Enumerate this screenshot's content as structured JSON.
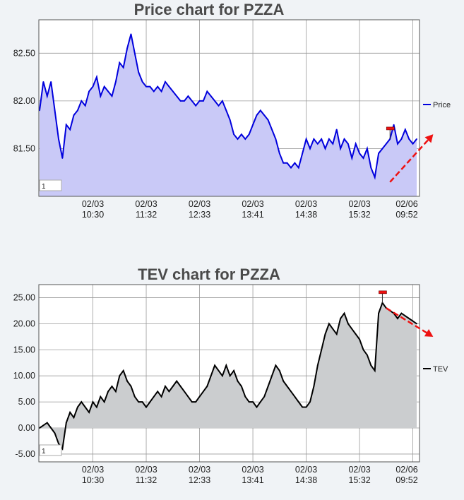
{
  "chart_data": [
    {
      "type": "area",
      "title": "Price chart for PZZA",
      "xlabel": "",
      "ylabel": "",
      "ylim": [
        81.0,
        82.85
      ],
      "y_ticks": [
        "82.50",
        "82.00",
        "81.50"
      ],
      "y_tick_values": [
        82.5,
        82.0,
        81.5
      ],
      "x_ticks": [
        [
          "02/03",
          "10:30"
        ],
        [
          "02/03",
          "11:32"
        ],
        [
          "02/03",
          "12:33"
        ],
        [
          "02/03",
          "13:41"
        ],
        [
          "02/03",
          "14:38"
        ],
        [
          "02/03",
          "15:32"
        ],
        [
          "02/06",
          "09:52"
        ]
      ],
      "x_tick_index": [
        14,
        28,
        42,
        56,
        70,
        84,
        98
      ],
      "x_count": 100,
      "legend": "top-right",
      "grid": true,
      "colors": {
        "line": "#0000dd",
        "fill": "#c9c9f7",
        "trend": "#ee1111",
        "marker": "#ee1111"
      },
      "range_input": "1",
      "series": [
        {
          "name": "Price",
          "values": [
            81.9,
            82.2,
            82.05,
            82.2,
            81.9,
            81.6,
            81.4,
            81.75,
            81.7,
            81.85,
            81.9,
            82.0,
            81.95,
            82.1,
            82.15,
            82.25,
            82.05,
            82.15,
            82.1,
            82.05,
            82.2,
            82.4,
            82.35,
            82.55,
            82.7,
            82.5,
            82.3,
            82.2,
            82.15,
            82.15,
            82.1,
            82.15,
            82.1,
            82.2,
            82.15,
            82.1,
            82.05,
            82.0,
            82.0,
            82.05,
            82.0,
            81.95,
            82.0,
            82.0,
            82.1,
            82.05,
            82.0,
            81.95,
            82.0,
            81.9,
            81.8,
            81.65,
            81.6,
            81.65,
            81.6,
            81.65,
            81.75,
            81.85,
            81.9,
            81.85,
            81.8,
            81.7,
            81.6,
            81.45,
            81.35,
            81.35,
            81.3,
            81.35,
            81.3,
            81.45,
            81.6,
            81.5,
            81.6,
            81.55,
            81.6,
            81.5,
            81.6,
            81.55,
            81.7,
            81.5,
            81.6,
            81.55,
            81.4,
            81.55,
            81.45,
            81.4,
            81.5,
            81.3,
            81.2,
            81.45,
            81.5,
            81.55,
            81.6,
            81.75,
            81.55,
            81.6,
            81.7,
            81.6,
            81.55,
            81.6
          ]
        }
      ],
      "marker_index": 92,
      "trend": {
        "from": [
          92,
          81.15
        ],
        "to": [
          100,
          81.65
        ]
      }
    },
    {
      "type": "area",
      "title": "TEV chart for PZZA",
      "xlabel": "",
      "ylabel": "",
      "ylim": [
        -6.5,
        27.5
      ],
      "y_ticks": [
        "25.00",
        "20.00",
        "15.00",
        "10.00",
        "5.00",
        "0.00",
        "-5.00"
      ],
      "y_tick_values": [
        25,
        20,
        15,
        10,
        5,
        0,
        -5
      ],
      "x_ticks": [
        [
          "02/03",
          "10:30"
        ],
        [
          "02/03",
          "11:32"
        ],
        [
          "02/03",
          "12:33"
        ],
        [
          "02/03",
          "13:41"
        ],
        [
          "02/03",
          "14:38"
        ],
        [
          "02/03",
          "15:32"
        ],
        [
          "02/06",
          "09:52"
        ]
      ],
      "x_tick_index": [
        14,
        28,
        42,
        56,
        70,
        84,
        98
      ],
      "x_count": 100,
      "legend": "right",
      "grid": true,
      "colors": {
        "line": "#000000",
        "fill": "#cbcdcf",
        "trend": "#ee1111",
        "marker": "#ee1111"
      },
      "range_input": "1",
      "series": [
        {
          "name": "TEV",
          "values": [
            0,
            0.5,
            1,
            0,
            -1,
            -3,
            -4,
            1,
            3,
            2,
            4,
            5,
            4,
            3,
            5,
            4,
            6,
            5,
            7,
            8,
            7,
            10,
            11,
            9,
            8,
            6,
            5,
            5,
            4,
            5,
            6,
            7,
            6,
            8,
            7,
            8,
            9,
            8,
            7,
            6,
            5,
            5,
            6,
            7,
            8,
            10,
            12,
            11,
            10,
            12,
            10,
            11,
            9,
            8,
            6,
            5,
            5,
            4,
            5,
            6,
            8,
            10,
            12,
            11,
            9,
            8,
            7,
            6,
            5,
            4,
            4,
            5,
            8,
            12,
            15,
            18,
            20,
            19,
            18,
            21,
            22,
            20,
            19,
            18,
            17,
            15,
            14,
            12,
            11,
            22,
            24,
            23,
            22.5,
            22,
            21,
            22,
            21.5,
            21,
            20.5,
            20
          ]
        }
      ],
      "marker_index": 90,
      "trend": {
        "from": [
          91,
          23
        ],
        "to": [
          100,
          17.5
        ]
      }
    }
  ]
}
